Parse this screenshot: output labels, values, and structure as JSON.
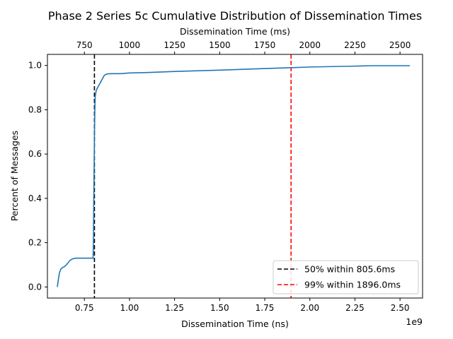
{
  "chart_data": {
    "type": "line",
    "title": "Phase 2 Series 5c Cumulative Distribution of Dissemination Times",
    "xlabel": "Dissemination Time (ns)",
    "x_offset_text": "1e9",
    "ylabel": "Percent of Messages",
    "top_xlabel": "Dissemination Time (ms)",
    "xlim": [
      0.545,
      2.625
    ],
    "ylim": [
      -0.05,
      1.05
    ],
    "top_xlim": [
      545,
      2625
    ],
    "x_ticks": [
      0.75,
      1.0,
      1.25,
      1.5,
      1.75,
      2.0,
      2.25,
      2.5
    ],
    "x_tick_labels": [
      "0.75",
      "1.00",
      "1.25",
      "1.50",
      "1.75",
      "2.00",
      "2.25",
      "2.50"
    ],
    "y_ticks": [
      0.0,
      0.2,
      0.4,
      0.6,
      0.8,
      1.0
    ],
    "y_tick_labels": [
      "0.0",
      "0.2",
      "0.4",
      "0.6",
      "0.8",
      "1.0"
    ],
    "top_x_ticks": [
      750,
      1000,
      1250,
      1500,
      1750,
      2000,
      2250,
      2500
    ],
    "top_x_tick_labels": [
      "750",
      "1000",
      "1250",
      "1500",
      "1750",
      "2000",
      "2250",
      "2500"
    ],
    "grid": false,
    "legend_position": "lower-right",
    "series": [
      {
        "color": "#1f77b4",
        "x": [
          0.6,
          0.605,
          0.612,
          0.62,
          0.63,
          0.64,
          0.65,
          0.66,
          0.67,
          0.68,
          0.69,
          0.7,
          0.72,
          0.75,
          0.78,
          0.798,
          0.8,
          0.802,
          0.804,
          0.806,
          0.808,
          0.81,
          0.815,
          0.82,
          0.83,
          0.84,
          0.85,
          0.86,
          0.87,
          0.88,
          0.9,
          0.95,
          1.0,
          1.1,
          1.25,
          1.5,
          1.75,
          1.9,
          2.0,
          2.25,
          2.35,
          2.5,
          2.555
        ],
        "y": [
          0.0,
          0.03,
          0.065,
          0.082,
          0.088,
          0.092,
          0.1,
          0.11,
          0.12,
          0.125,
          0.128,
          0.13,
          0.13,
          0.13,
          0.13,
          0.13,
          0.2,
          0.4,
          0.55,
          0.7,
          0.8,
          0.86,
          0.885,
          0.895,
          0.91,
          0.925,
          0.94,
          0.955,
          0.96,
          0.962,
          0.963,
          0.963,
          0.966,
          0.968,
          0.973,
          0.979,
          0.986,
          0.99,
          0.993,
          0.997,
          0.999,
          0.999,
          0.999
        ]
      }
    ],
    "vlines": [
      {
        "x": 0.8056,
        "color": "#000000",
        "label": "50%  within 805.6ms"
      },
      {
        "x": 1.896,
        "color": "#ff0000",
        "label": "99%  within 1896.0ms"
      }
    ]
  }
}
